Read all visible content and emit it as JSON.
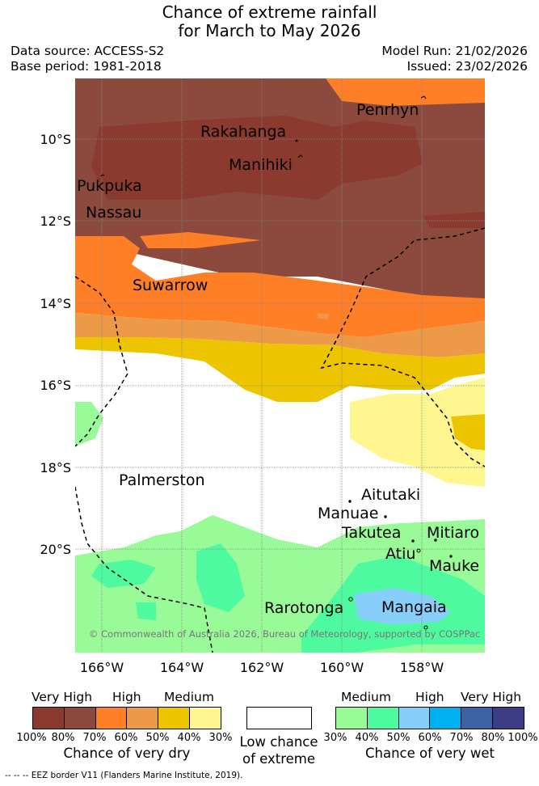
{
  "title_line1": "Chance of extreme rainfall",
  "title_line2": "for March to May 2026",
  "data_source": "Data source: ACCESS-S2",
  "base_period": "Base period: 1981-2018",
  "model_run": "Model Run: 21/02/2026",
  "issued": "Issued: 23/02/2026",
  "lat_labels": [
    "10°S",
    "12°S",
    "14°S",
    "16°S",
    "18°S",
    "20°S"
  ],
  "lon_labels": [
    "166°W",
    "164°W",
    "162°W",
    "160°W",
    "158°W"
  ],
  "places": {
    "penrhyn": "Penrhyn",
    "rakahanga": "Rakahanga",
    "manihiki": "Manihiki",
    "pukapuka": "Pukpuka",
    "nassau": "Nassau",
    "suwarrow": "Suwarrow",
    "palmerston": "Palmerston",
    "aitutaki": "Aitutaki",
    "manuae": "Manuae",
    "takutea": "Takutea",
    "mitiaro": "Mitiaro",
    "atiu": "Atiu",
    "mauke": "Mauke",
    "rarotonga": "Rarotonga",
    "mangaia": "Mangaia"
  },
  "copyright": "© Commonwealth of Australia 2026, Bureau of Meteorology, supported by COSPPac",
  "legend": {
    "dry": {
      "heads": [
        "Very High",
        "High",
        "Medium"
      ],
      "ticks": [
        "100%",
        "80%",
        "70%",
        "60%",
        "50%",
        "40%",
        "30%"
      ],
      "caption": "Chance of very dry",
      "colors": [
        "#8b3a30",
        "#8c4a3e",
        "#ff7f27",
        "#ec9a48",
        "#ecc500",
        "#fff68f"
      ]
    },
    "low": {
      "caption_line1": "Low chance",
      "caption_line2": "of extreme",
      "color": "#ffffff"
    },
    "wet": {
      "heads": [
        "Medium",
        "High",
        "Very High"
      ],
      "ticks": [
        "30%",
        "40%",
        "50%",
        "60%",
        "70%",
        "80%",
        "100%"
      ],
      "caption": "Chance of very wet",
      "colors": [
        "#98fb98",
        "#4dfaa0",
        "#87cefa",
        "#00b0f0",
        "#3a62a4",
        "#3c3c84"
      ]
    }
  },
  "eez_note": "-- -- -- EEZ border V11 (Flanders Marine Institute, 2019)."
}
